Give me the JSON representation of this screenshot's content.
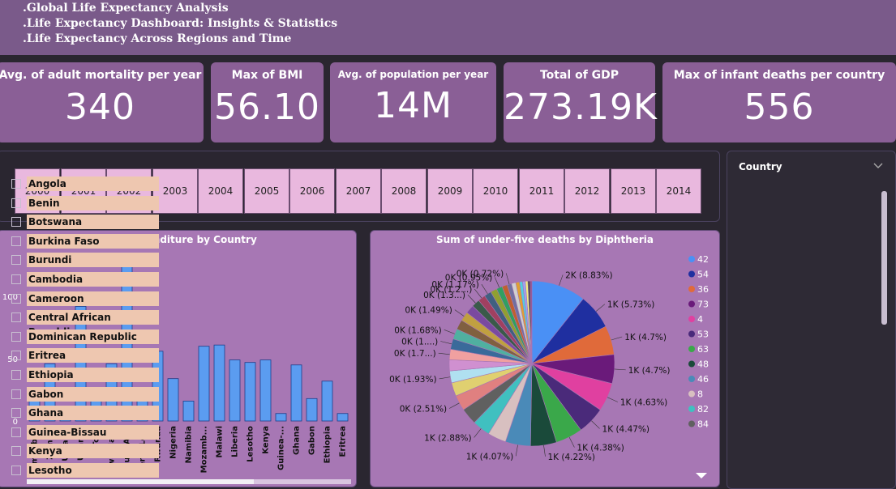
{
  "header": {
    "lines": [
      ".Global Life Expectancy Analysis",
      ".Life Expectancy Dashboard: Insights & Statistics",
      ".Life Expectancy Across Regions and Time"
    ]
  },
  "kpis": [
    {
      "title": "Avg. of adult mortality per year",
      "value": "340"
    },
    {
      "title": "Max of BMI",
      "value": "56.10"
    },
    {
      "title": "Avg. of population per year",
      "value": "14M"
    },
    {
      "title": "Total of GDP",
      "value": "273.19K"
    },
    {
      "title": "Max of infant deaths per country",
      "value": "556"
    }
  ],
  "years": [
    "2000",
    "2001",
    "2002",
    "2003",
    "2004",
    "2005",
    "2006",
    "2007",
    "2008",
    "2009",
    "2010",
    "2011",
    "2012",
    "2013",
    "2014"
  ],
  "country_slicer": {
    "header": "Country",
    "items": [
      "Angola",
      "Benin",
      "Botswana",
      "Burkina Faso",
      "Burundi",
      "Cambodia",
      "Cameroon",
      "Central African Republic",
      "Dominican Republic",
      "Eritrea",
      "Ethiopia",
      "Gabon",
      "Ghana",
      "Guinea-Bissau",
      "Kenya",
      "Lesotho"
    ]
  },
  "colors": {
    "bar": "#5b9cf0",
    "panel": "#a777b4"
  },
  "chart_data": [
    {
      "type": "bar",
      "title": "Total expenditure by Country",
      "categories": [
        "Zimbabwe",
        "Zambia",
        "Ukraine",
        "Uganda",
        "Togo",
        "Swaziland",
        "South Af...",
        "Sierra Le...",
        "Rwanda",
        "Nigeria",
        "Namibia",
        "Mozamb...",
        "Malawi",
        "Liberia",
        "Lesotho",
        "Kenya",
        "Guinea-...",
        "Ghana",
        "Gabon",
        "Ethiopia",
        "Eritrea"
      ],
      "values": [
        27,
        46,
        6,
        92,
        22,
        46,
        124,
        27,
        56,
        34,
        16,
        60,
        61,
        49,
        47,
        49,
        6,
        45,
        18,
        32,
        6
      ],
      "yticks": [
        0,
        50,
        100
      ],
      "ylim": [
        0,
        130
      ]
    },
    {
      "type": "pie",
      "title": "Sum of under-five deaths by Diphtheria",
      "slices": [
        {
          "value": 8.83,
          "label": "2K (8.83%)",
          "color": "#4a90f5"
        },
        {
          "value": 5.73,
          "label": "1K (5.73%)",
          "color": "#1f2fa0"
        },
        {
          "value": 4.7,
          "label": "1K (4.7%)",
          "color": "#e06a3a"
        },
        {
          "value": 4.7,
          "label": "1K (4.7%)",
          "color": "#6a1a7a"
        },
        {
          "value": 4.63,
          "label": "1K (4.63%)",
          "color": "#e040a0"
        },
        {
          "value": 4.47,
          "label": "1K (4.47%)",
          "color": "#4a2a7a"
        },
        {
          "value": 4.38,
          "label": "1K (4.38%)",
          "color": "#3aa84a"
        },
        {
          "value": 4.22,
          "label": "1K (4.22%)",
          "color": "#1a4a3a"
        },
        {
          "value": 4.07,
          "label": "1K (4.07%)",
          "color": "#4a8ab8"
        },
        {
          "value": 3.0,
          "label": "",
          "color": "#d8c0c0"
        },
        {
          "value": 2.88,
          "label": "1K (2.88%)",
          "color": "#40c0c0"
        },
        {
          "value": 2.7,
          "label": "",
          "color": "#606060"
        },
        {
          "value": 2.51,
          "label": "0K (2.51%)",
          "color": "#e08080"
        },
        {
          "value": 2.2,
          "label": "",
          "color": "#e0d070"
        },
        {
          "value": 1.93,
          "label": "0K (1.93%)",
          "color": "#b0e0f0"
        },
        {
          "value": 1.8,
          "label": "",
          "color": "#d090d0"
        },
        {
          "value": 1.7,
          "label": "0K (1.7...)",
          "color": "#f0a0a0"
        },
        {
          "value": 1.7,
          "label": "0K (1....)",
          "color": "#3a6a9a"
        },
        {
          "value": 1.68,
          "label": "0K (1.68%)",
          "color": "#50b0a0"
        },
        {
          "value": 1.6,
          "label": "",
          "color": "#806040"
        },
        {
          "value": 1.49,
          "label": "0K (1.49%)",
          "color": "#c0a040"
        },
        {
          "value": 1.4,
          "label": "",
          "color": "#7a4aa0"
        },
        {
          "value": 1.3,
          "label": "0K (1.3...)",
          "color": "#3a5a4a"
        },
        {
          "value": 1.2,
          "label": "0K (1.2...)",
          "color": "#a04060"
        },
        {
          "value": 1.17,
          "label": "0K (1.17%)",
          "color": "#406080"
        },
        {
          "value": 1.05,
          "label": "",
          "color": "#90a030"
        },
        {
          "value": 0.95,
          "label": "0K (0.95%)",
          "color": "#30a060"
        },
        {
          "value": 0.85,
          "label": "",
          "color": "#c06030"
        },
        {
          "value": 0.72,
          "label": "0K (0.72%)",
          "color": "#7070a0"
        },
        {
          "value": 0.7,
          "label": "",
          "color": "#d0d0d0"
        },
        {
          "value": 0.6,
          "label": "",
          "color": "#e0a030"
        },
        {
          "value": 0.5,
          "label": "",
          "color": "#50d0e0"
        },
        {
          "value": 0.45,
          "label": "",
          "color": "#a0a0f0"
        },
        {
          "value": 0.4,
          "label": "",
          "color": "#f0f080"
        },
        {
          "value": 0.35,
          "label": "",
          "color": "#404040"
        },
        {
          "value": 0.3,
          "label": "",
          "color": "#905090"
        }
      ],
      "legend": [
        {
          "name": "42",
          "color": "#4a90f5"
        },
        {
          "name": "54",
          "color": "#1f2fa0"
        },
        {
          "name": "36",
          "color": "#e06a3a"
        },
        {
          "name": "73",
          "color": "#6a1a7a"
        },
        {
          "name": "4",
          "color": "#e040a0"
        },
        {
          "name": "53",
          "color": "#4a2a7a"
        },
        {
          "name": "63",
          "color": "#3aa84a"
        },
        {
          "name": "48",
          "color": "#1a4a3a"
        },
        {
          "name": "46",
          "color": "#4a8ab8"
        },
        {
          "name": "8",
          "color": "#d8c0c0"
        },
        {
          "name": "82",
          "color": "#40c0c0"
        },
        {
          "name": "84",
          "color": "#606060"
        }
      ]
    }
  ]
}
